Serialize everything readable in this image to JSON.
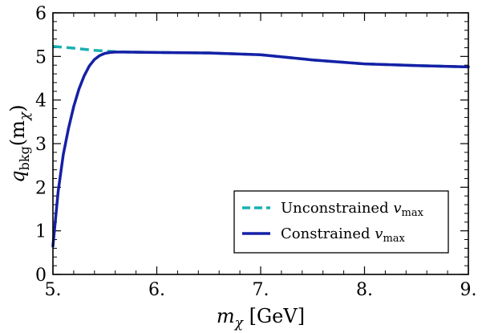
{
  "chart_data": {
    "type": "line",
    "title": "",
    "xlabel": "m_χ [GeV]",
    "xlabel_main": "m",
    "xlabel_sub": "χ",
    "xlabel_unit": " [GeV]",
    "ylabel": "q_bkg(m_χ)",
    "ylabel_main": "q",
    "ylabel_sub": "bkg",
    "ylabel_paren_open": "(m",
    "ylabel_paren_sub": "χ",
    "ylabel_paren_close": ")",
    "xlim": [
      5.0,
      9.0
    ],
    "ylim": [
      0,
      6
    ],
    "xticks": [
      5,
      6,
      7,
      8,
      9
    ],
    "xtick_labels": [
      "5.",
      "6.",
      "7.",
      "8.",
      "9."
    ],
    "yticks": [
      0,
      1,
      2,
      3,
      4,
      5,
      6
    ],
    "ytick_labels": [
      "0",
      "1",
      "2",
      "3",
      "4",
      "5",
      "6"
    ],
    "grid": false,
    "legend_position": "bottom-right",
    "series": [
      {
        "name": "Unconstrained v_max",
        "label_main": "Unconstrained ",
        "label_var": "v",
        "label_sub": "max",
        "color": "#19b0b0",
        "style": "dashed",
        "x": [
          5.0,
          5.2,
          5.4,
          5.6,
          5.7,
          6.0,
          6.5,
          7.0,
          7.5,
          8.0,
          8.5,
          9.0
        ],
        "y": [
          5.23,
          5.19,
          5.14,
          5.11,
          5.1,
          5.09,
          5.08,
          5.04,
          4.92,
          4.83,
          4.79,
          4.76
        ]
      },
      {
        "name": "Constrained v_max",
        "label_main": "Constrained ",
        "label_var": "v",
        "label_sub": "max",
        "color": "#1520a6",
        "style": "solid",
        "x": [
          5.0,
          5.05,
          5.1,
          5.15,
          5.2,
          5.25,
          5.3,
          5.35,
          5.4,
          5.45,
          5.5,
          5.55,
          5.6,
          5.65,
          5.7,
          6.0,
          6.5,
          7.0,
          7.5,
          8.0,
          8.5,
          9.0
        ],
        "y": [
          0.65,
          1.9,
          2.75,
          3.35,
          3.85,
          4.25,
          4.55,
          4.78,
          4.93,
          5.02,
          5.07,
          5.09,
          5.1,
          5.1,
          5.1,
          5.09,
          5.08,
          5.04,
          4.92,
          4.83,
          4.79,
          4.76
        ]
      }
    ]
  }
}
